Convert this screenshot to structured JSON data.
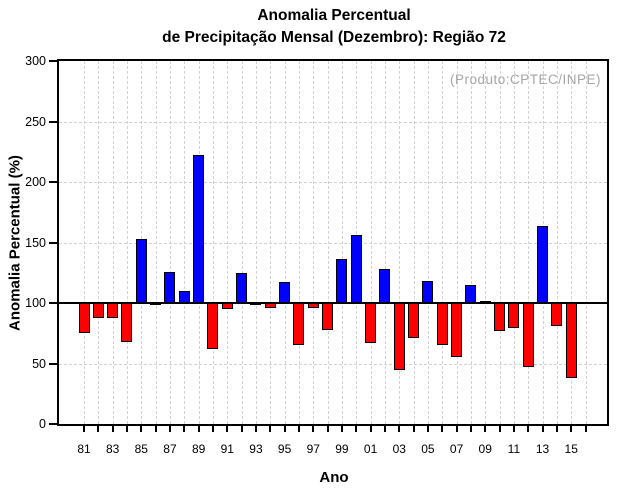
{
  "chart_data": {
    "type": "bar",
    "title_line1": "Anomalia Percentual",
    "title_line2": "de Precipitação Mensal (Dezembro): Região 72",
    "product_note": "(Produto:CPTEC/INPE)",
    "xlabel": "Ano",
    "ylabel": "Anomalia Percentual (%)",
    "baseline": 100,
    "ylim": [
      0,
      300
    ],
    "yticks": [
      0,
      50,
      100,
      150,
      200,
      250,
      300
    ],
    "hgrid_values": [
      50,
      150,
      200,
      250
    ],
    "x_label_every": 2,
    "trailing_unlabeled_ticks": 1,
    "categories": [
      "81",
      "82",
      "83",
      "84",
      "85",
      "86",
      "87",
      "88",
      "89",
      "90",
      "91",
      "92",
      "93",
      "94",
      "95",
      "96",
      "97",
      "98",
      "99",
      "00",
      "01",
      "02",
      "03",
      "04",
      "05",
      "06",
      "07",
      "08",
      "09",
      "10",
      "11",
      "12",
      "13",
      "14",
      "15"
    ],
    "values": [
      75,
      88,
      88,
      68,
      153,
      98,
      126,
      110,
      222,
      62,
      95,
      125,
      98,
      96,
      117,
      65,
      96,
      78,
      136,
      156,
      67,
      128,
      45,
      71,
      118,
      65,
      55,
      115,
      102,
      77,
      79,
      47,
      164,
      81,
      38
    ],
    "legend": "none",
    "grid": "on",
    "colors": {
      "above_baseline": "#0000ff",
      "below_baseline": "#ff0000",
      "bar_border": "#000000",
      "grid": "#d2d2d2",
      "frame": "#000000",
      "note_text": "#a6a6a6"
    }
  }
}
